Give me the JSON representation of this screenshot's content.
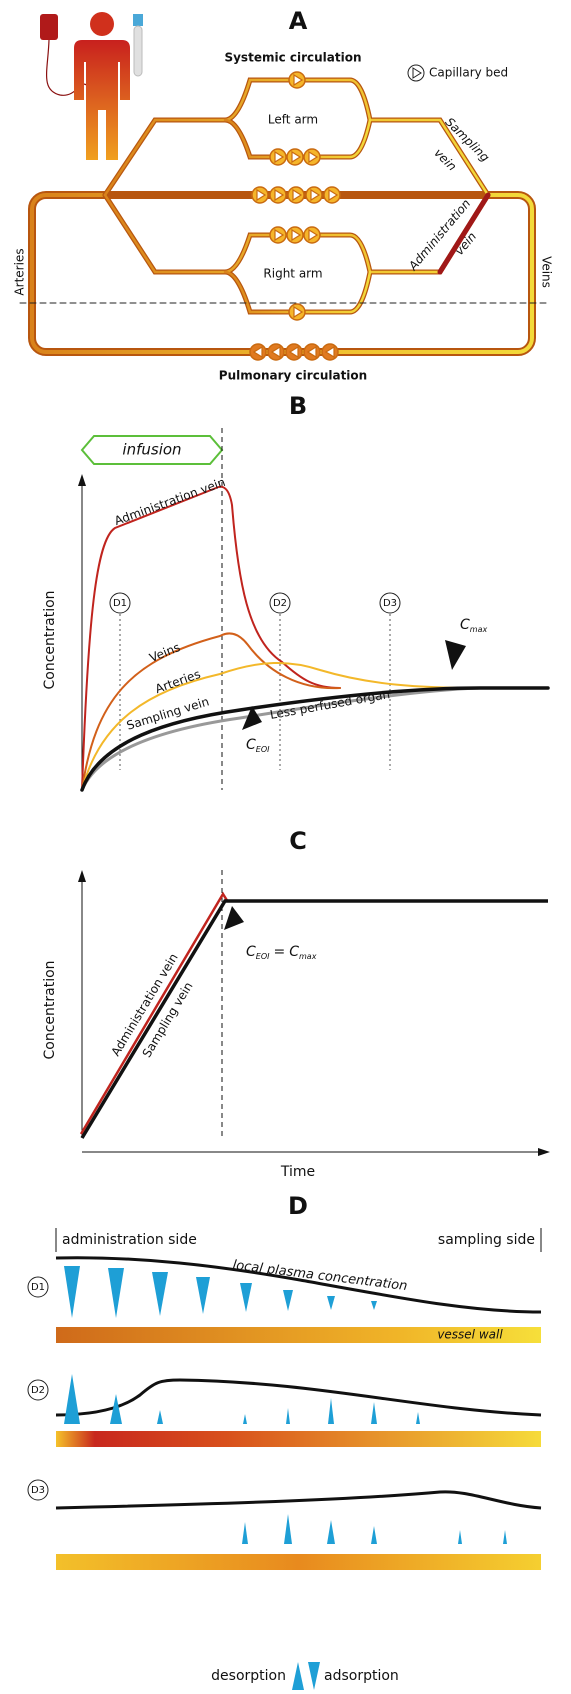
{
  "panel_a": {
    "label": "A",
    "systemic": "Systemic circulation",
    "legend": "Capillary bed",
    "left_arm": "Left arm",
    "right_arm": "Right arm",
    "sampling_vein": [
      "Sampling",
      "vein"
    ],
    "administration_vein": [
      "Administration",
      "vein"
    ],
    "arteries": "Arteries",
    "veins": "Veins",
    "pulmonary": "Pulmonary circulation"
  },
  "panel_b": {
    "label": "B",
    "infusion": "infusion",
    "y_axis": "Concentration",
    "curves": [
      "Administration vein",
      "Veins",
      "Arteries",
      "Sampling vein",
      "Less perfused organ"
    ],
    "markers": [
      "D1",
      "D2",
      "D3"
    ],
    "c_max": {
      "symbol": "C",
      "sub": "max"
    },
    "c_eoi": {
      "symbol": "C",
      "sub": "EOI"
    }
  },
  "panel_c": {
    "label": "C",
    "y_axis": "Concentration",
    "x_axis": "Time",
    "curves": [
      "Administration vein",
      "Sampling vein"
    ],
    "annotation": {
      "left": {
        "symbol": "C",
        "sub": "EOI"
      },
      "operator": "=",
      "right": {
        "symbol": "C",
        "sub": "max"
      }
    }
  },
  "panel_d": {
    "label": "D",
    "left": "administration side",
    "right": "sampling side",
    "rows": [
      "D1",
      "D2",
      "D3"
    ],
    "curve_label": "local plasma concentration",
    "wall_label": "vessel wall",
    "legend": [
      "desorption",
      "adsorption"
    ]
  }
}
